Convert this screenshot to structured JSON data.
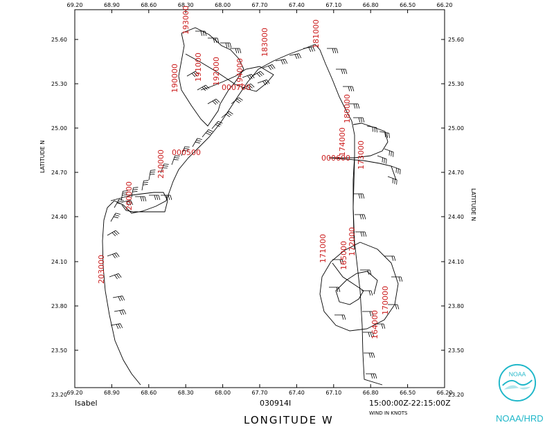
{
  "lon_ticks": [
    "69.20",
    "68.90",
    "68.60",
    "68.30",
    "68.00",
    "67.70",
    "67.40",
    "67.10",
    "66.80",
    "66.50",
    "66.20"
  ],
  "lat_ticks": [
    "25.60",
    "25.30",
    "25.00",
    "24.70",
    "24.40",
    "24.10",
    "23.80",
    "23.50",
    "23.20"
  ],
  "labels": {
    "storm": "Isabel",
    "date": "030914I",
    "time_range": "15:00:00Z-22:15:00Z",
    "wind_units": "WIND IN KNOTS",
    "x_axis": "LONGITUDE  W",
    "y_axis_left": "LATITUDE  N",
    "y_axis_right": "LATITUDE  N",
    "brand": "NOAA/HRD",
    "logo_text": "NOAA"
  },
  "time_labels": [
    "193000",
    "190000",
    "191000",
    "192000",
    "194000",
    "183000",
    "181000",
    "180000",
    "174000",
    "000500",
    "210000",
    "200000",
    "203000",
    "000700",
    "171000",
    "165000",
    "172000",
    "173000",
    "170000",
    "164000",
    "000600"
  ],
  "colors": {
    "line": "#000000",
    "time_label": "#cc2020",
    "brand": "#1fb7c9"
  }
}
